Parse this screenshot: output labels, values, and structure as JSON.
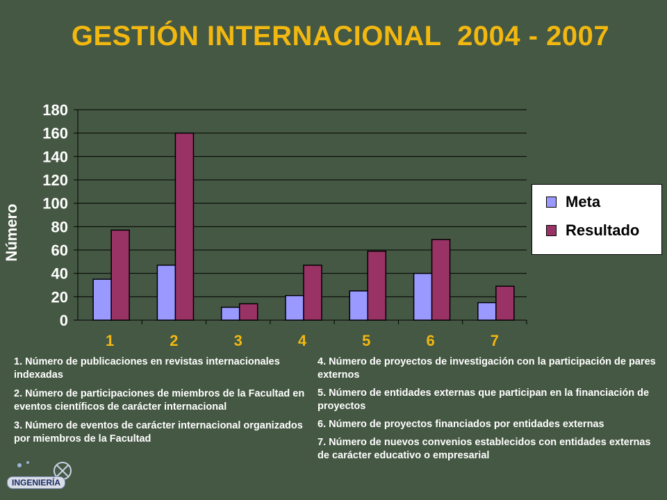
{
  "title": "GESTIÓN INTERNACIONAL  2004 - 2007",
  "colors": {
    "background": "#455843",
    "title": "#f2b80f",
    "meta": "#9999ff",
    "resultado": "#993366",
    "axis_text": "#ffffff"
  },
  "chart_data": {
    "type": "bar",
    "categories": [
      "1",
      "2",
      "3",
      "4",
      "5",
      "6",
      "7"
    ],
    "series": [
      {
        "name": "Meta",
        "values": [
          35,
          47,
          11,
          21,
          25,
          40,
          15
        ]
      },
      {
        "name": "Resultado",
        "values": [
          77,
          160,
          14,
          47,
          59,
          69,
          29
        ]
      }
    ],
    "xlabel": "",
    "ylabel": "Número",
    "ylim": [
      0,
      180
    ],
    "yticks": [
      0,
      20,
      40,
      60,
      80,
      100,
      120,
      140,
      160,
      180
    ],
    "grid": true,
    "legend": "right"
  },
  "notes_left": [
    "1. Número de publicaciones en revistas internacionales indexadas",
    "2. Número de participaciones de miembros de la Facultad en eventos científicos de carácter internacional",
    "3. Número de eventos de carácter internacional organizados por miembros de la Facultad"
  ],
  "notes_right": [
    "4. Número de proyectos de investigación con la participación de pares externos",
    "5. Número de entidades externas que participan en la financiación de proyectos",
    "6. Número de proyectos financiados por entidades externas",
    "7. Número de nuevos convenios establecidos con entidades externas de carácter educativo o empresarial"
  ],
  "logo": {
    "text": "INGENIERÍA",
    "icon": "university-logo-icon"
  }
}
